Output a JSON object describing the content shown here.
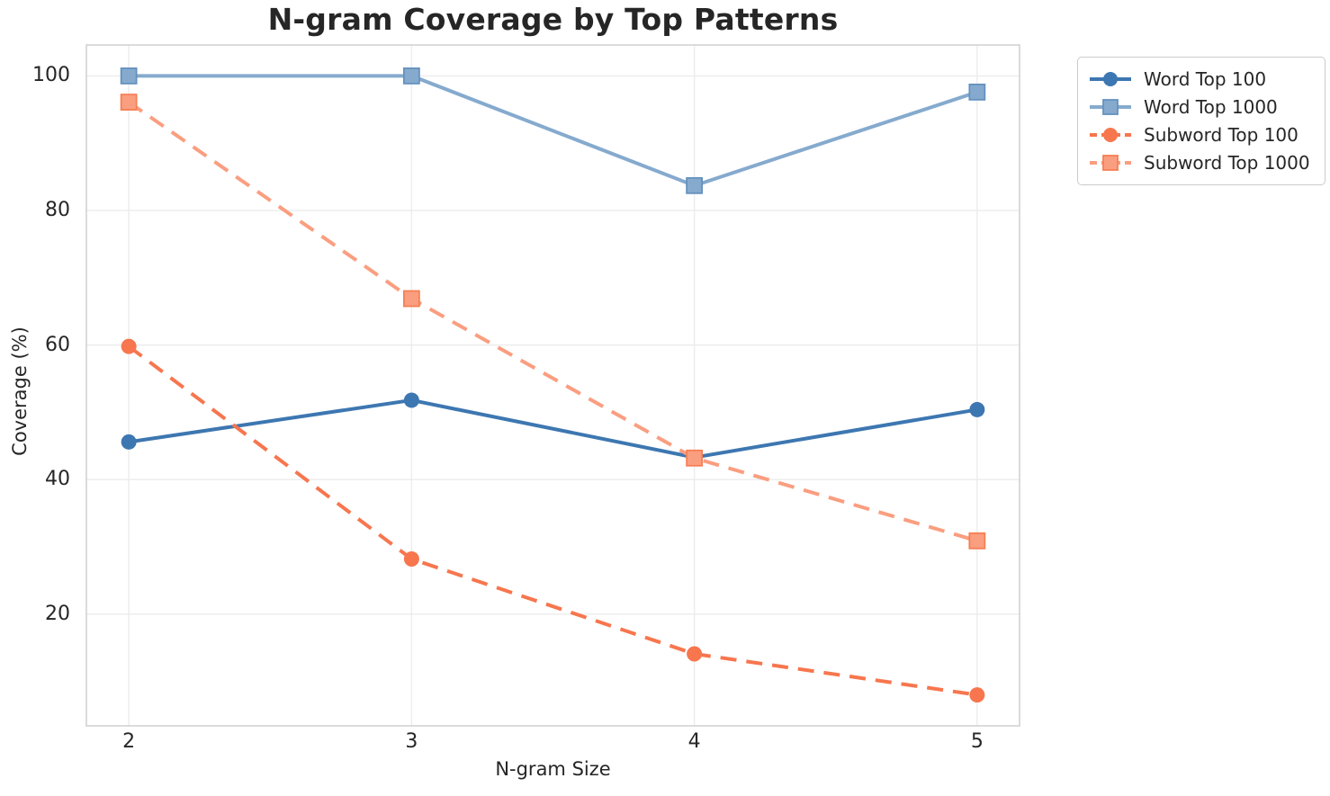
{
  "chart_data": {
    "type": "line",
    "title": "N-gram Coverage by Top Patterns",
    "xlabel": "N-gram Size",
    "ylabel": "Coverage (%)",
    "x": [
      2,
      3,
      4,
      5
    ],
    "xticks": [
      "2",
      "3",
      "4",
      "5"
    ],
    "yticks": [
      20,
      40,
      60,
      80,
      100
    ],
    "xlim": [
      1.85,
      5.15
    ],
    "ylim": [
      3.4,
      104.6
    ],
    "grid": true,
    "legend_position": "outside-top-right",
    "colors": {
      "grid": "#ececec",
      "spine": "#d2d2d2",
      "text": "#262626",
      "background": "#ffffff"
    },
    "series": [
      {
        "name": "Word Top 100",
        "color": "#3D77B1",
        "edge": "#36699D",
        "marker": "circle",
        "dash": "solid",
        "values": [
          45.6,
          51.8,
          43.3,
          50.4
        ]
      },
      {
        "name": "Word Top 1000",
        "color": "#85AACE",
        "edge": "#6591BE",
        "marker": "square",
        "dash": "solid",
        "values": [
          100.0,
          100.0,
          83.7,
          97.6
        ]
      },
      {
        "name": "Subword Top 100",
        "color": "#F7764E",
        "edge": "#E2602F",
        "marker": "circle",
        "dash": "dashed",
        "values": [
          59.8,
          28.2,
          14.1,
          8.0
        ]
      },
      {
        "name": "Subword Top 1000",
        "color": "#FA9E80",
        "edge": "#F67F54",
        "marker": "square",
        "dash": "dashed",
        "values": [
          96.1,
          66.9,
          43.2,
          30.9
        ]
      }
    ]
  }
}
